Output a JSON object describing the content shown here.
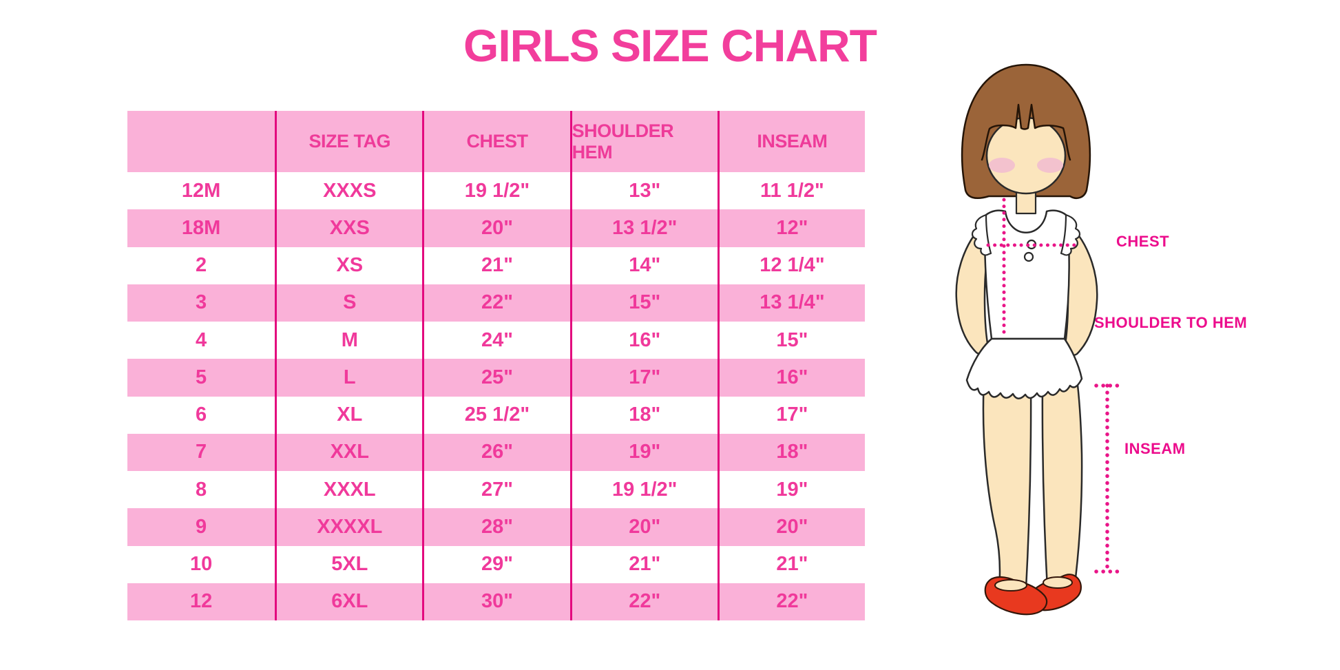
{
  "page_title": "GIRLS SIZE CHART",
  "chart_data": {
    "type": "table",
    "title": "GIRLS SIZE CHART",
    "columns": [
      "",
      "SIZE TAG",
      "CHEST",
      "SHOULDER HEM",
      "INSEAM"
    ],
    "rows": [
      [
        "12M",
        "XXXS",
        "19 1/2\"",
        "13\"",
        "11 1/2\""
      ],
      [
        "18M",
        "XXS",
        "20\"",
        "13 1/2\"",
        "12\""
      ],
      [
        "2",
        "XS",
        "21\"",
        "14\"",
        "12 1/4\""
      ],
      [
        "3",
        "S",
        "22\"",
        "15\"",
        "13 1/4\""
      ],
      [
        "4",
        "M",
        "24\"",
        "16\"",
        "15\""
      ],
      [
        "5",
        "L",
        "25\"",
        "17\"",
        "16\""
      ],
      [
        "6",
        "XL",
        "25 1/2\"",
        "18\"",
        "17\""
      ],
      [
        "7",
        "XXL",
        "26\"",
        "19\"",
        "18\""
      ],
      [
        "8",
        "XXXL",
        "27\"",
        "19 1/2\"",
        "19\""
      ],
      [
        "9",
        "XXXXL",
        "28\"",
        "20\"",
        "20\""
      ],
      [
        "10",
        "5XL",
        "29\"",
        "21\"",
        "21\""
      ],
      [
        "12",
        "6XL",
        "30\"",
        "22\"",
        "22\""
      ]
    ],
    "layout_hints": {
      "striped": true,
      "stripe_colors": [
        "#ffffff",
        "#fab1d8"
      ],
      "header_background": "#fab1d8",
      "column_dividers": "#e3097e"
    }
  },
  "figure": {
    "labels": {
      "chest": "CHEST",
      "shoulder_to_hem": "SHOULDER TO HEM",
      "inseam": "INSEAM"
    }
  },
  "colors": {
    "title_pink": "#f23e9c",
    "table_text_pink": "#f0399b",
    "stripe_pink": "#fab1d8",
    "divider_magenta": "#e3097e",
    "label_magenta": "#ec0c8c",
    "dotted_line_magenta": "#e91588",
    "hair_brown": "#9b6439",
    "skin_tone": "#fbe5bd",
    "blush_pink": "#f3c2ce",
    "shoe_red": "#e8391f"
  }
}
